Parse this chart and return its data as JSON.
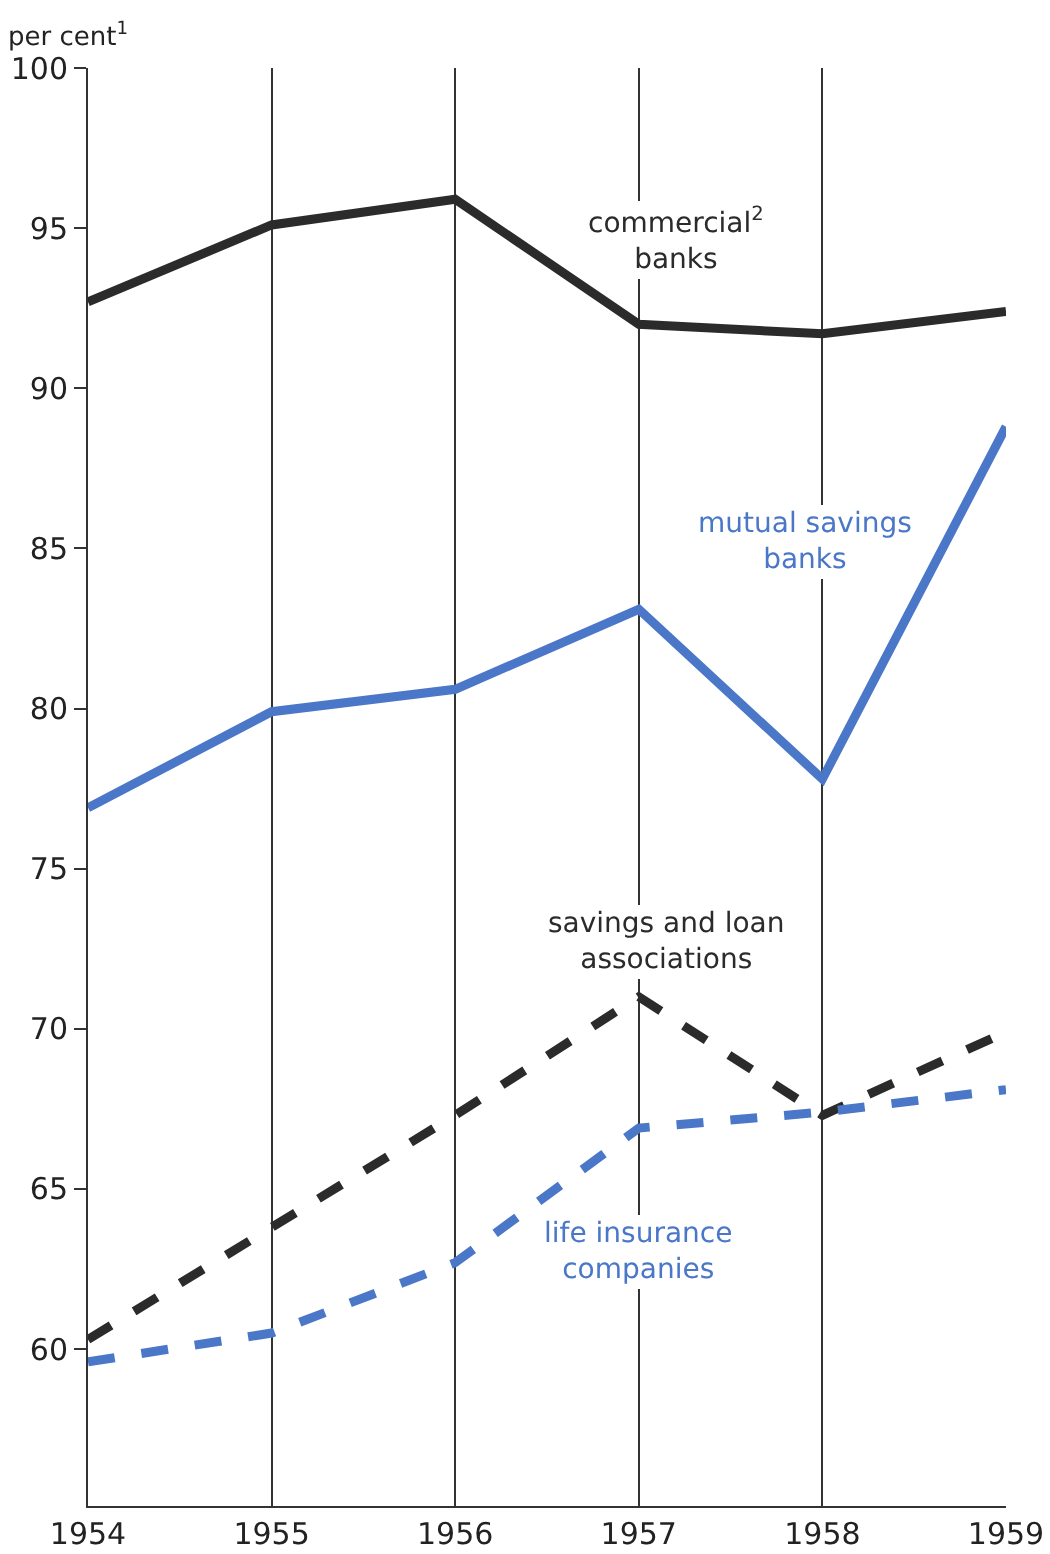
{
  "chart_data": {
    "type": "line",
    "ylabel": "per cent$^{1}$",
    "x": [
      1954,
      1955,
      1956,
      1957,
      1958,
      1959
    ],
    "xlim": [
      1954,
      1959
    ],
    "xticks": [
      1954,
      1955,
      1956,
      1957,
      1958,
      1959
    ],
    "ylim": [
      55.1,
      100
    ],
    "yticks": [
      60,
      65,
      70,
      75,
      80,
      85,
      90,
      95,
      100
    ],
    "grid": "x",
    "legend": false,
    "marker": "none",
    "series": [
      {
        "name": "commercial$^{2}$\nbanks",
        "color": "#2b2b2b",
        "line_style": "solid",
        "values": [
          92.7,
          95.1,
          95.9,
          92.0,
          91.7,
          92.4
        ]
      },
      {
        "name": "mutual savings\nbanks",
        "color": "#4a77c8",
        "line_style": "solid",
        "values": [
          76.9,
          79.9,
          80.6,
          83.1,
          77.8,
          88.8
        ]
      },
      {
        "name": "savings and loan\nassociations",
        "color": "#2b2b2b",
        "line_style": "dashed",
        "values": [
          60.3,
          63.8,
          67.3,
          71.0,
          67.3,
          69.9
        ]
      },
      {
        "name": "life insurance\ncompanies",
        "color": "#4a77c8",
        "line_style": "dashed",
        "values": [
          59.6,
          60.5,
          62.7,
          66.9,
          67.4,
          68.1
        ]
      }
    ]
  }
}
